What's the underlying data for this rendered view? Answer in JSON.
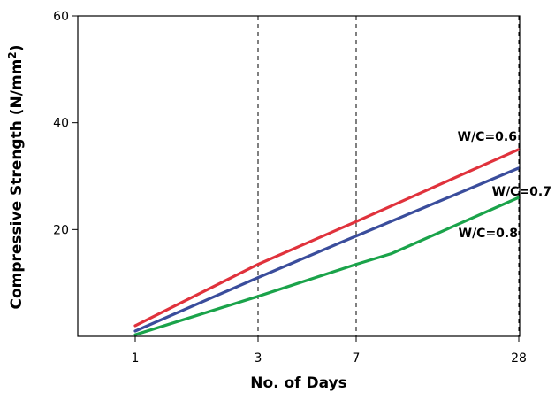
{
  "chart_data": {
    "type": "line",
    "x_ticks": [
      "1",
      "3",
      "7",
      "28"
    ],
    "y_ticks": [
      20,
      40,
      60
    ],
    "ylim": [
      0,
      60
    ],
    "xlabel": "No. of Days",
    "ylabel": "Compressive Strength (N/mm",
    "ylabel_sup": "2",
    "ylabel_close": ")",
    "grid": "dashed vertical lines at 3, 7, 28",
    "series": [
      {
        "name": "W/C=0.6",
        "color": "#e0323c",
        "x": [
          "1",
          "3",
          "7",
          "28"
        ],
        "y": [
          2.0,
          13.5,
          21.5,
          35.0
        ]
      },
      {
        "name": "W/C=0.7",
        "color": "#3a4d9c",
        "x": [
          "1",
          "3",
          "7",
          "28"
        ],
        "y": [
          1.0,
          11.0,
          18.8,
          31.5
        ]
      },
      {
        "name": "W/C=0.8",
        "color": "#1aa34a",
        "x": [
          "1",
          "3",
          "7",
          "9",
          "28"
        ],
        "y": [
          0.3,
          7.5,
          13.5,
          15.5,
          26.0
        ]
      }
    ]
  }
}
